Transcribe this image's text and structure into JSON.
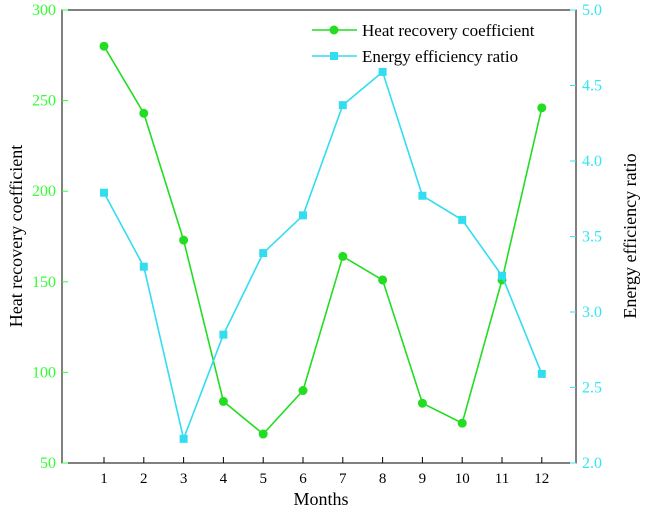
{
  "chart_data": {
    "type": "line",
    "xlabel": "Months",
    "categories": [
      "1",
      "2",
      "3",
      "4",
      "5",
      "6",
      "7",
      "8",
      "9",
      "10",
      "11",
      "12"
    ],
    "y_left": {
      "label": "Heat recovery coefficient",
      "lim": [
        50,
        300
      ],
      "ticks": [
        "50",
        "100",
        "150",
        "200",
        "250",
        "300"
      ],
      "color": "#33ff33"
    },
    "y_right": {
      "label": "Energy efficiency ratio",
      "lim": [
        2.0,
        5.0
      ],
      "ticks": [
        "2.0",
        "2.5",
        "3.0",
        "3.5",
        "4.0",
        "4.5",
        "5.0"
      ],
      "color": "#33e6f0"
    },
    "series": [
      {
        "name": "Heat recovery coefficient",
        "axis": "left",
        "marker": "circle",
        "color": "#22dd22",
        "values": [
          280,
          243,
          173,
          84,
          66,
          90,
          164,
          151,
          83,
          72,
          151,
          246
        ]
      },
      {
        "name": "Energy efficiency ratio",
        "axis": "right",
        "marker": "square",
        "color": "#33ddf0",
        "values": [
          3.79,
          3.3,
          2.16,
          2.85,
          3.39,
          3.64,
          4.37,
          4.59,
          3.77,
          3.61,
          3.24,
          2.59
        ]
      }
    ],
    "legend_position": "top-right",
    "grid": false
  }
}
